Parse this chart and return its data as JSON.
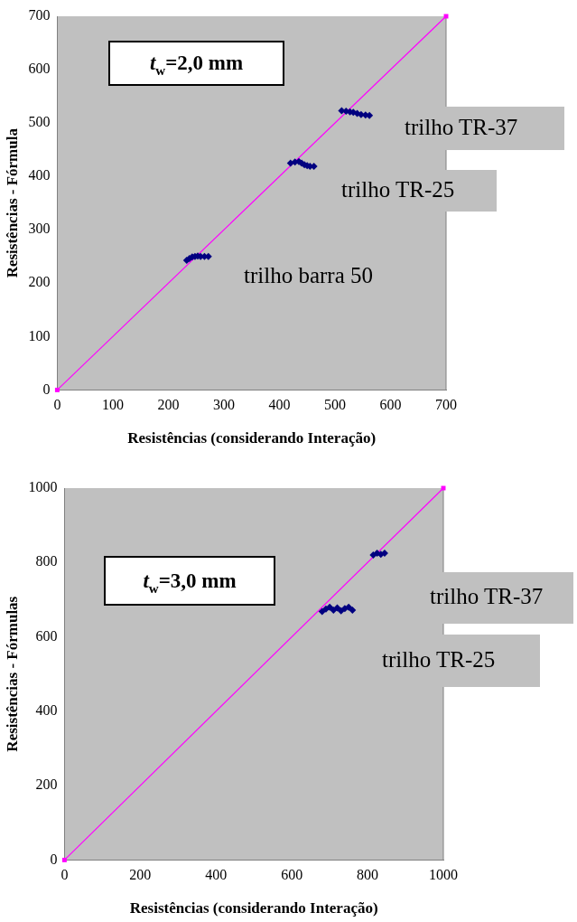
{
  "chart_data": [
    {
      "type": "scatter",
      "ylabel": "Resistências - Fórmula",
      "xlabel": "Resistências (considerando Interação)",
      "xlim": [
        0,
        700
      ],
      "ylim": [
        0,
        700
      ],
      "xticks": [
        0,
        100,
        200,
        300,
        400,
        500,
        600,
        700
      ],
      "yticks": [
        0,
        100,
        200,
        300,
        400,
        500,
        600,
        700
      ],
      "grid": false,
      "legend": false,
      "marker": "diamond",
      "annotations": [
        "t$_{w}$=2,0 mm",
        "trilho TR-37",
        "trilho TR-25",
        "trilho barra 50"
      ],
      "series": [
        {
          "color": "#000080",
          "x": [
            233,
            238,
            243,
            248,
            253,
            258,
            265,
            272,
            420,
            428,
            435,
            440,
            445,
            450,
            455,
            462,
            512,
            520,
            527,
            533,
            540,
            547,
            555,
            562
          ],
          "values": [
            243,
            246,
            249,
            250,
            251,
            250,
            250,
            250,
            425,
            427,
            428,
            425,
            422,
            420,
            419,
            419,
            523,
            522,
            521,
            520,
            518,
            516,
            515,
            514
          ]
        },
        {
          "type": "line",
          "color": "#ff00ff",
          "marker": "square",
          "x": [
            0,
            700
          ],
          "values": [
            0,
            700
          ]
        }
      ]
    },
    {
      "type": "scatter",
      "ylabel": "Resistências - Fórmulas",
      "xlabel": "Resistências (considerando Interação)",
      "xlim": [
        0,
        1000
      ],
      "ylim": [
        0,
        1000
      ],
      "xticks": [
        0,
        200,
        400,
        600,
        800,
        1000
      ],
      "yticks": [
        0,
        200,
        400,
        600,
        800,
        1000
      ],
      "grid": false,
      "legend": false,
      "marker": "diamond",
      "annotations": [
        "t$_{w}$=3,0 mm",
        "trilho TR-37",
        "trilho TR-25"
      ],
      "series": [
        {
          "color": "#000080",
          "x": [
            680,
            690,
            700,
            710,
            720,
            730,
            740,
            750,
            760,
            815,
            825,
            835,
            845
          ],
          "values": [
            668,
            675,
            680,
            672,
            678,
            670,
            676,
            680,
            672,
            820,
            825,
            822,
            825
          ]
        },
        {
          "type": "line",
          "color": "#ff00ff",
          "marker": "square",
          "x": [
            0,
            1000
          ],
          "values": [
            0,
            1000
          ]
        }
      ]
    }
  ]
}
